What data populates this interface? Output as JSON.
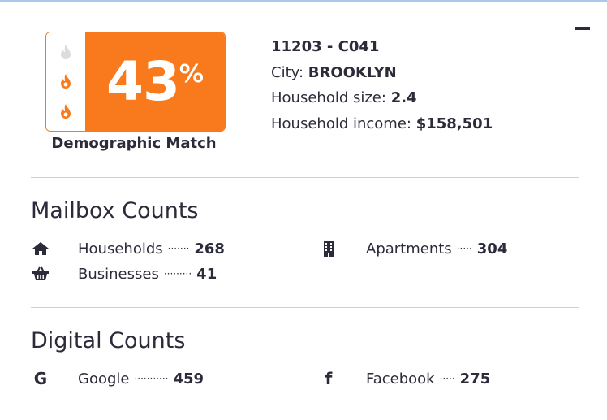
{
  "badge": {
    "value": "43",
    "unit": "%",
    "label": "Demographic Match",
    "flames_active": 2,
    "flames_total": 3,
    "accent": "#f97a1c"
  },
  "info": {
    "title": "11203 - C041",
    "city_label": "City:",
    "city": "BROOKLYN",
    "size_label": "Household size:",
    "size": "2.4",
    "income_label": "Household income:",
    "income": "$158,501"
  },
  "mailbox": {
    "heading": "Mailbox Counts",
    "items": [
      {
        "icon": "home-icon",
        "label": "Households",
        "dots": "·······",
        "value": "268"
      },
      {
        "icon": "building-icon",
        "label": "Apartments",
        "dots": "·····",
        "value": "304"
      },
      {
        "icon": "basket-icon",
        "label": "Businesses",
        "dots": "·········",
        "value": "41"
      }
    ]
  },
  "digital": {
    "heading": "Digital Counts",
    "items": [
      {
        "icon": "google-icon",
        "label": "Google",
        "dots": "···········",
        "value": "459"
      },
      {
        "icon": "facebook-icon",
        "label": "Facebook",
        "dots": "·····",
        "value": "275"
      }
    ]
  }
}
